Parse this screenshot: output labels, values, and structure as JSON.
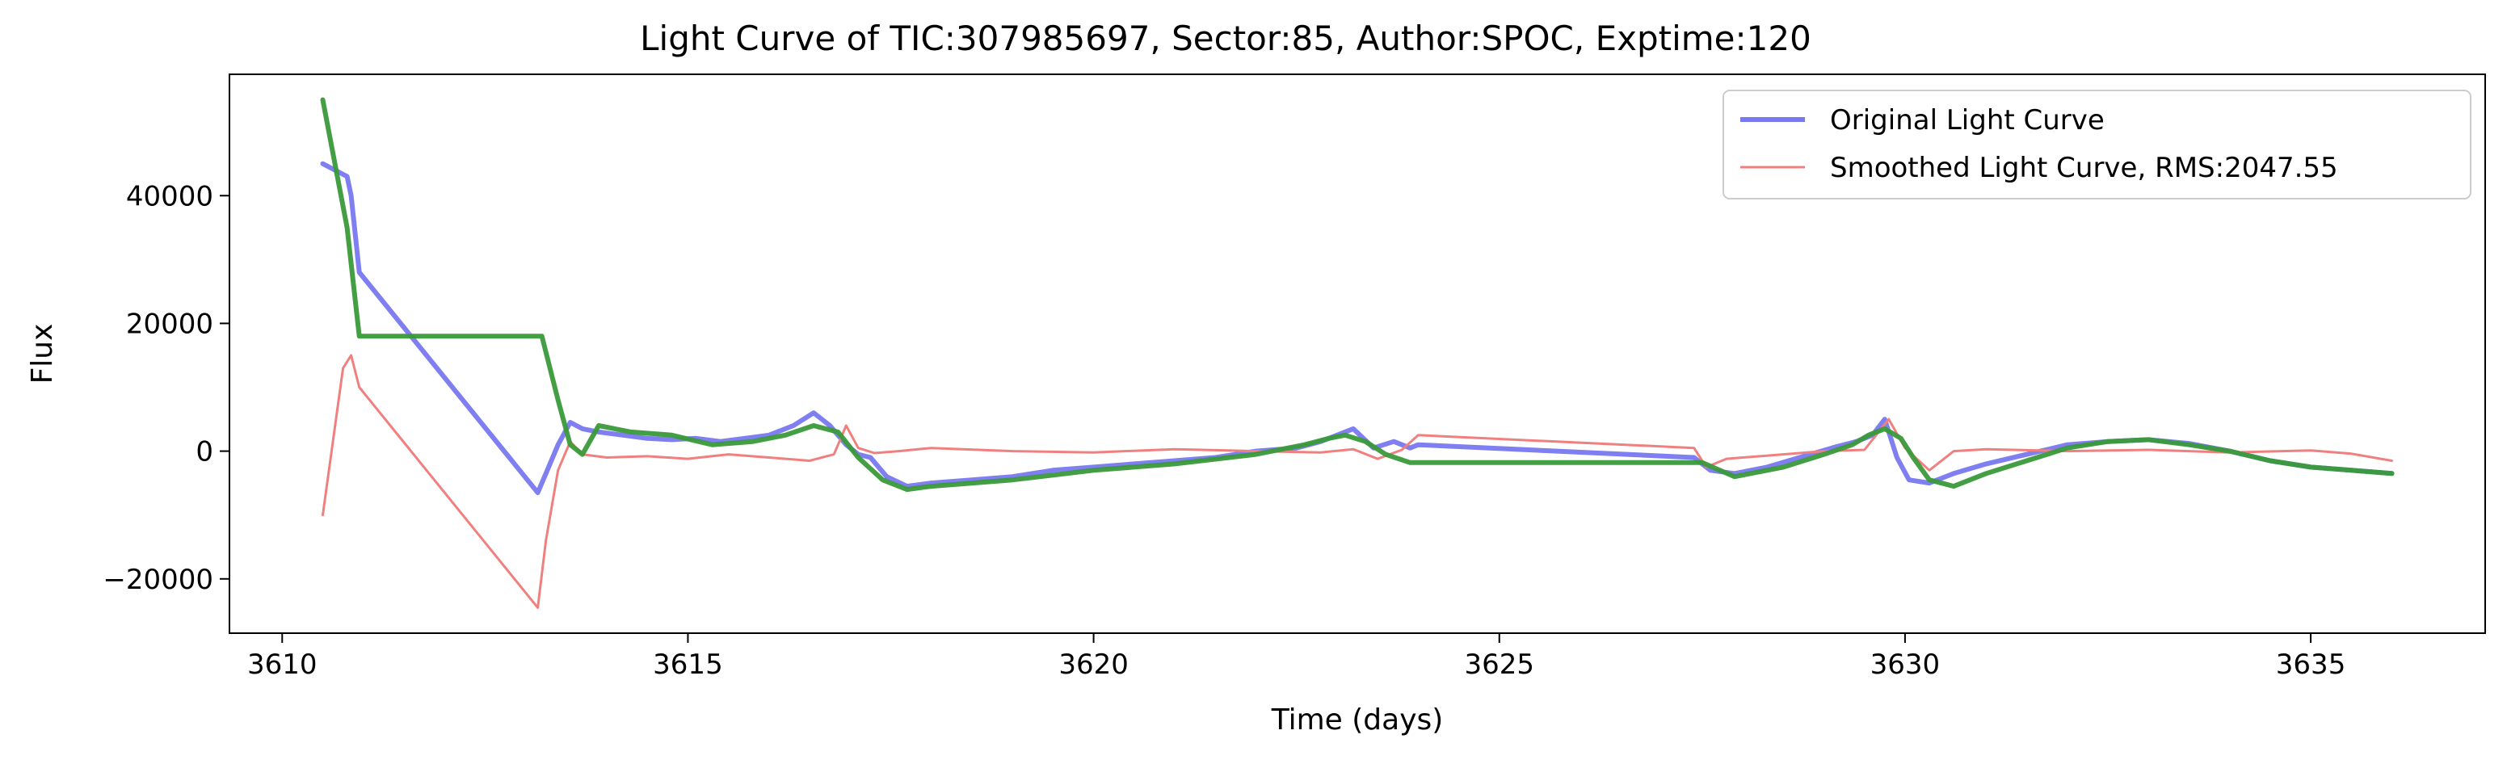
{
  "chart_data": {
    "type": "line",
    "title": "Light Curve of TIC:307985697, Sector:85, Author:SPOC, Exptime:120",
    "xlabel": "Time (days)",
    "ylabel": "Flux",
    "xlim": [
      3609.35,
      3637.15
    ],
    "ylim": [
      -28500,
      59000
    ],
    "x_ticks": [
      3610,
      3615,
      3620,
      3625,
      3630,
      3635
    ],
    "y_ticks": [
      -20000,
      0,
      20000,
      40000
    ],
    "x_tick_labels": [
      "3610",
      "3615",
      "3620",
      "3625",
      "3630",
      "3635"
    ],
    "y_tick_labels": [
      "−20000",
      "0",
      "20000",
      "40000"
    ],
    "grid": false,
    "legend_position": "top-right",
    "legend": [
      {
        "series": "original",
        "label": "Original Light Curve"
      },
      {
        "series": "smoothed",
        "label": "Smoothed Light Curve, RMS:2047.55"
      }
    ],
    "series": [
      {
        "key": "original",
        "name": "Original Light Curve",
        "color": "#7878f0",
        "x": [
          3610.5,
          3610.65,
          3610.8,
          3610.85,
          3610.95,
          3613.15,
          3613.25,
          3613.4,
          3613.55,
          3613.7,
          3613.9,
          3614.2,
          3614.5,
          3614.8,
          3615.1,
          3615.4,
          3615.7,
          3616.0,
          3616.3,
          3616.55,
          3616.75,
          3616.95,
          3617.1,
          3617.25,
          3617.45,
          3617.7,
          3618.0,
          3618.5,
          3619.0,
          3619.5,
          3620.0,
          3620.5,
          3621.0,
          3621.5,
          3622.0,
          3622.5,
          3622.8,
          3623.0,
          3623.2,
          3623.45,
          3623.7,
          3623.9,
          3624.0,
          3627.4,
          3627.6,
          3627.9,
          3628.3,
          3628.7,
          3629.1,
          3629.4,
          3629.6,
          3629.75,
          3629.9,
          3630.05,
          3630.3,
          3630.6,
          3631.0,
          3631.5,
          3632.0,
          3632.5,
          3633.0,
          3633.5,
          3634.0,
          3634.5,
          3635.0,
          3635.5,
          3636.0
        ],
        "y": [
          45000,
          44000,
          43000,
          40000,
          28000,
          -6500,
          -3500,
          1000,
          4500,
          3500,
          3000,
          2500,
          2000,
          1800,
          2000,
          1500,
          2000,
          2500,
          4000,
          6000,
          4000,
          1000,
          -500,
          -1000,
          -4000,
          -5500,
          -5000,
          -4500,
          -4000,
          -3000,
          -2500,
          -2000,
          -1500,
          -1000,
          0,
          500,
          1500,
          2500,
          3500,
          500,
          1500,
          500,
          1000,
          -1000,
          -3000,
          -3500,
          -2500,
          -1000,
          500,
          1500,
          2500,
          5000,
          -1000,
          -4500,
          -5000,
          -3500,
          -2000,
          -500,
          1000,
          1500,
          1800,
          1200,
          0,
          -1500,
          -2500,
          -3000,
          -3500
        ]
      },
      {
        "key": "smoothed",
        "name": "Smoothed Light Curve, RMS:2047.55",
        "color": "#f08080",
        "x": [
          3610.5,
          3610.75,
          3610.85,
          3610.95,
          3613.15,
          3613.25,
          3613.4,
          3613.55,
          3613.7,
          3614.0,
          3614.5,
          3615.0,
          3615.5,
          3616.0,
          3616.5,
          3616.8,
          3616.95,
          3617.1,
          3617.3,
          3617.6,
          3618.0,
          3619.0,
          3620.0,
          3621.0,
          3622.0,
          3622.8,
          3623.2,
          3623.5,
          3623.8,
          3624.0,
          3627.4,
          3627.55,
          3627.8,
          3628.5,
          3629.0,
          3629.5,
          3629.8,
          3630.0,
          3630.3,
          3630.6,
          3631.0,
          3632.0,
          3633.0,
          3634.0,
          3635.0,
          3635.5,
          3636.0
        ],
        "y": [
          -10000,
          13000,
          15000,
          10000,
          -24500,
          -14000,
          -3000,
          1500,
          -500,
          -1000,
          -800,
          -1200,
          -500,
          -1000,
          -1500,
          -500,
          4000,
          500,
          -300,
          0,
          500,
          0,
          -200,
          300,
          0,
          -200,
          300,
          -1200,
          200,
          2500,
          500,
          -2500,
          -1200,
          -500,
          0,
          200,
          5000,
          500,
          -3000,
          0,
          300,
          0,
          200,
          -200,
          100,
          -400,
          -1500
        ]
      },
      {
        "key": "third",
        "name": "",
        "color": "#3a9a3a",
        "x": [
          3610.5,
          3610.8,
          3610.95,
          3611.5,
          3612.5,
          3613.2,
          3613.4,
          3613.55,
          3613.7,
          3613.9,
          3614.3,
          3614.8,
          3615.3,
          3615.8,
          3616.2,
          3616.55,
          3616.85,
          3617.1,
          3617.4,
          3617.7,
          3618.0,
          3619.0,
          3620.0,
          3621.0,
          3622.0,
          3622.6,
          3622.9,
          3623.1,
          3623.35,
          3623.6,
          3623.9,
          3627.5,
          3627.9,
          3628.5,
          3629.0,
          3629.35,
          3629.55,
          3629.75,
          3629.95,
          3630.1,
          3630.3,
          3630.6,
          3631.0,
          3631.5,
          3632.0,
          3632.5,
          3633.0,
          3633.5,
          3634.0,
          3634.5,
          3635.0,
          3635.5,
          3636.0
        ],
        "y": [
          55000,
          35000,
          18000,
          18000,
          18000,
          18000,
          8000,
          1000,
          -500,
          4000,
          3000,
          2500,
          1000,
          1500,
          2500,
          4000,
          3000,
          -1000,
          -4500,
          -6000,
          -5500,
          -4500,
          -3000,
          -2000,
          -500,
          1000,
          2000,
          2500,
          1500,
          -500,
          -1800,
          -1800,
          -4000,
          -2500,
          -500,
          1000,
          2500,
          3500,
          2000,
          -1000,
          -4500,
          -5500,
          -3500,
          -1500,
          500,
          1500,
          1800,
          1000,
          0,
          -1500,
          -2500,
          -3000,
          -3500
        ]
      }
    ]
  }
}
